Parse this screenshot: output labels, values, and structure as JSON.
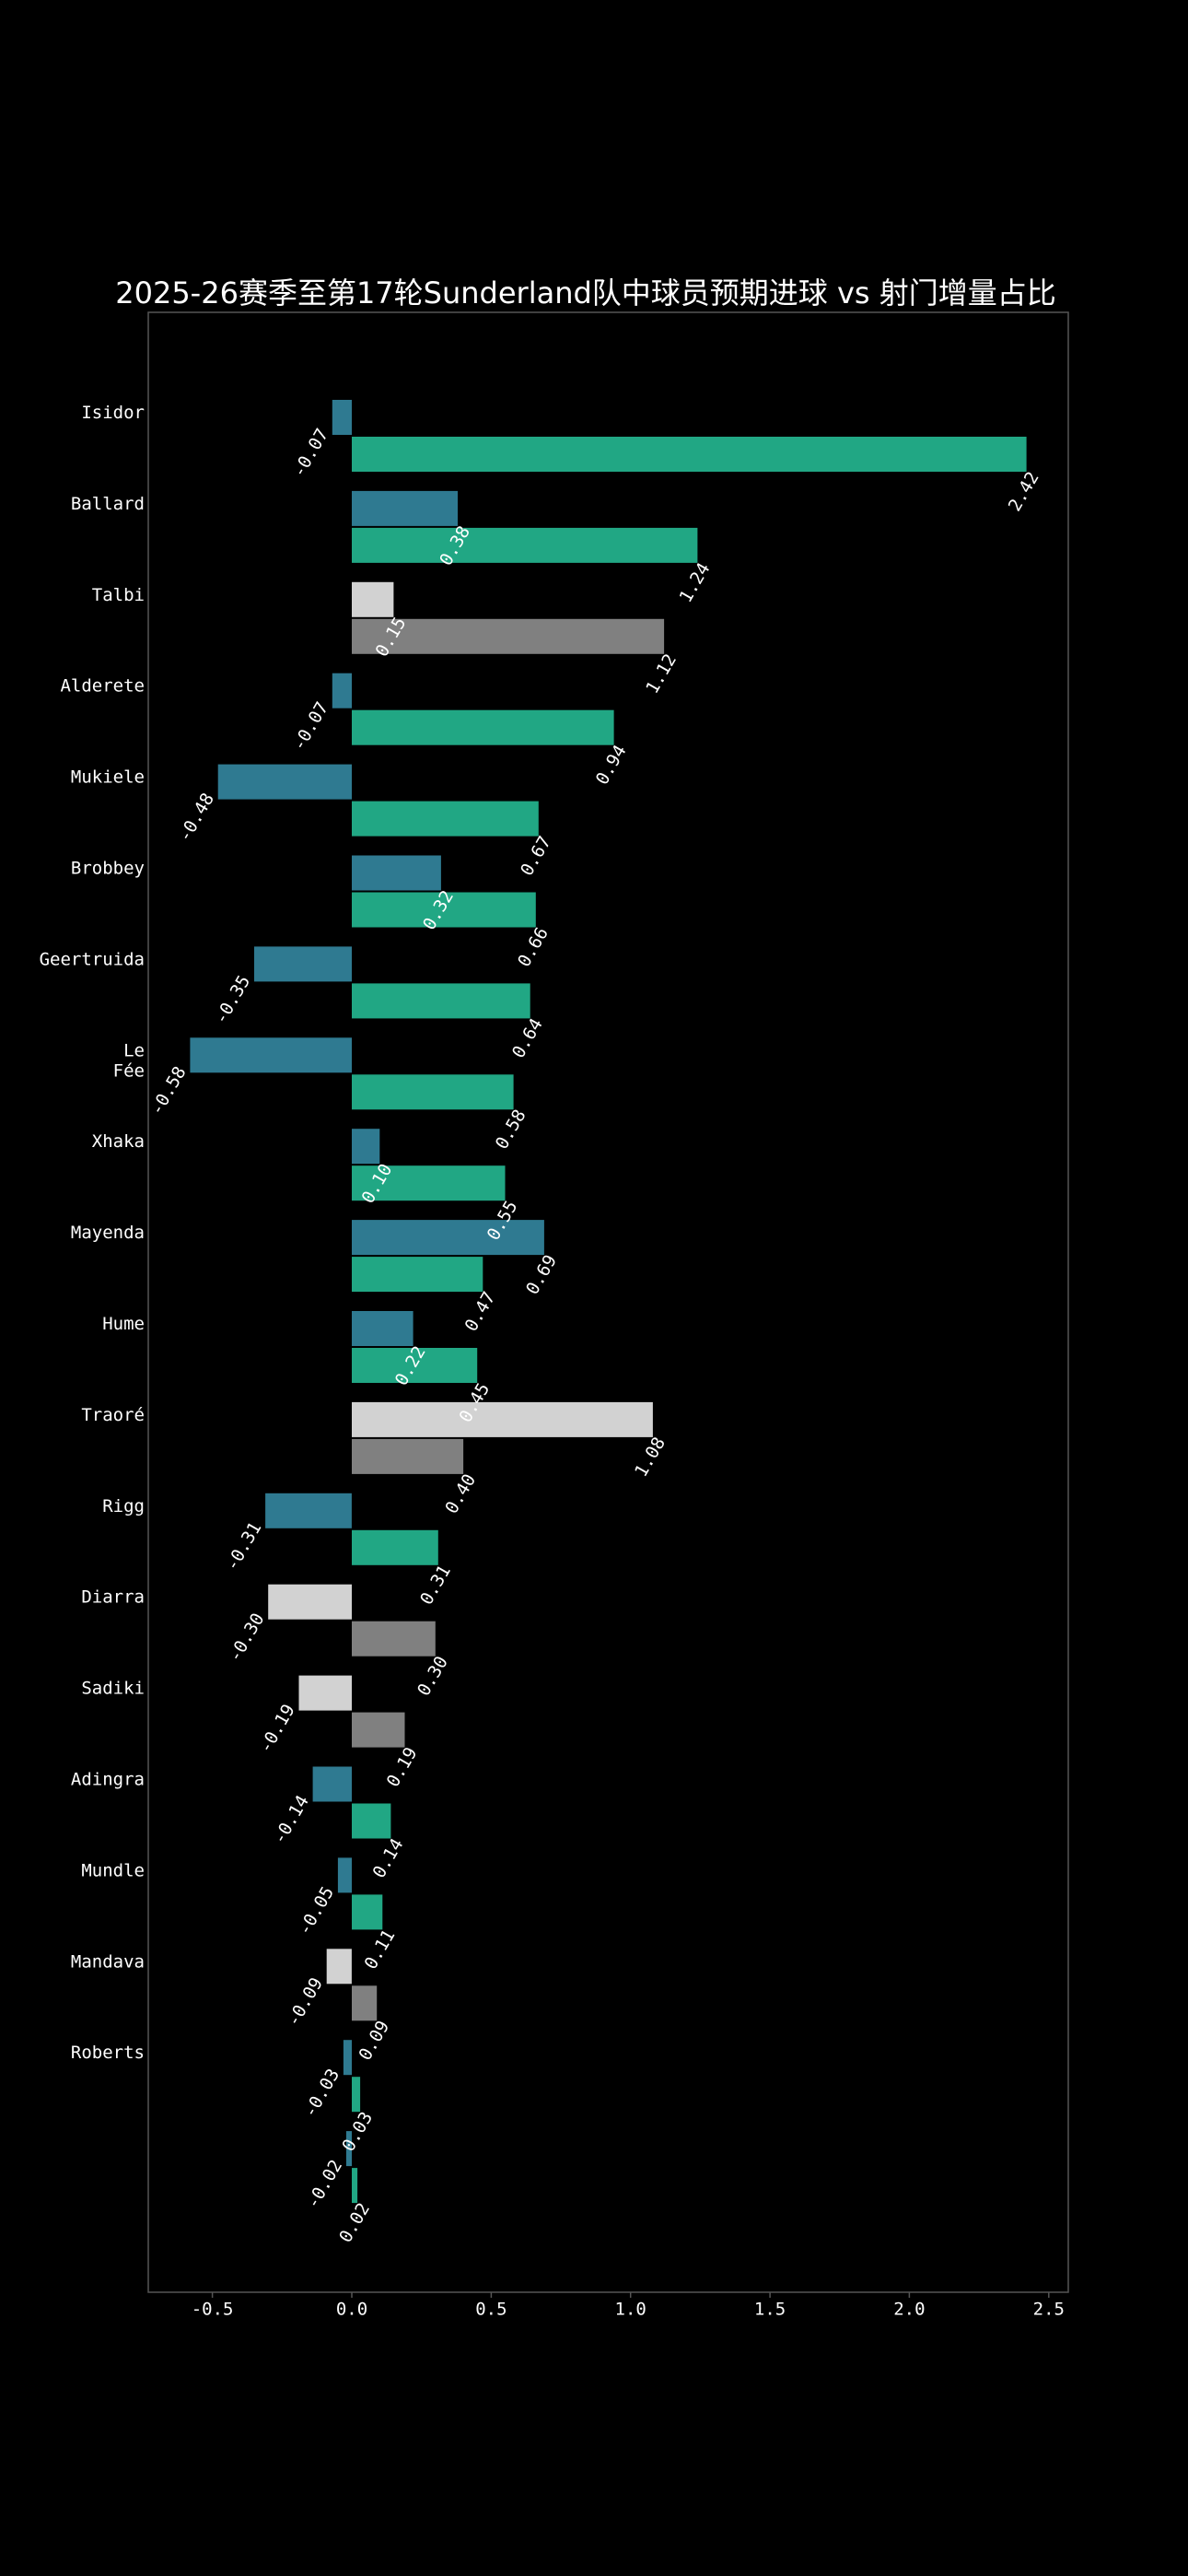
{
  "chart_data": {
    "type": "bar",
    "orientation": "horizontal",
    "title": "2025-26赛季至第17轮Sunderland队中球员预期进球 vs 射门增量占比",
    "xlabel": "",
    "ylabel": "",
    "xlim": [
      -0.73,
      2.57
    ],
    "xticks": [
      -0.5,
      0.0,
      0.5,
      1.0,
      1.5,
      2.0,
      2.5
    ],
    "xtick_labels": [
      "-0.5",
      "0.0",
      "0.5",
      "1.0",
      "1.5",
      "2.0",
      "2.5"
    ],
    "ytick_labels": [
      "Isidor",
      "Ballard",
      "Talbi",
      "Alderete",
      "Mukiele",
      "Brobbey",
      "Geertruida",
      "Le\nFée",
      "Xhaka",
      "Mayenda",
      "Hume",
      "Traoré",
      "Rigg",
      "Diarra",
      "Sadiki",
      "Adingra",
      "Mundle",
      "Mandava",
      "Roberts",
      ""
    ],
    "legend": "none",
    "grid": false,
    "colors": {
      "teal_blue": "#2f7a91",
      "green": "#21a784",
      "light_gray": "#d2d2d2",
      "gray": "#808080",
      "frame": "#555555"
    },
    "series": [
      {
        "name": "upper",
        "values": [
          -0.07,
          0.38,
          0.15,
          -0.07,
          -0.48,
          0.32,
          -0.35,
          -0.58,
          0.1,
          0.69,
          0.22,
          1.08,
          -0.31,
          -0.3,
          -0.19,
          -0.14,
          -0.05,
          -0.09,
          -0.03,
          -0.02
        ],
        "labels": [
          "-0.07",
          "0.38",
          "0.15",
          "-0.07",
          "-0.48",
          "0.32",
          "-0.35",
          "-0.58",
          "0.10",
          "0.69",
          "0.22",
          "1.08",
          "-0.31",
          "-0.30",
          "-0.19",
          "-0.14",
          "-0.05",
          "-0.09",
          "-0.03",
          "-0.02"
        ],
        "colors": [
          "teal_blue",
          "teal_blue",
          "light_gray",
          "teal_blue",
          "teal_blue",
          "teal_blue",
          "teal_blue",
          "teal_blue",
          "teal_blue",
          "teal_blue",
          "teal_blue",
          "light_gray",
          "teal_blue",
          "light_gray",
          "light_gray",
          "teal_blue",
          "teal_blue",
          "light_gray",
          "teal_blue",
          "teal_blue"
        ]
      },
      {
        "name": "lower",
        "values": [
          2.42,
          1.24,
          1.12,
          0.94,
          0.67,
          0.66,
          0.64,
          0.58,
          0.55,
          0.47,
          0.45,
          0.4,
          0.31,
          0.3,
          0.19,
          0.14,
          0.11,
          0.09,
          0.03,
          0.02
        ],
        "labels": [
          "2.42",
          "1.24",
          "1.12",
          "0.94",
          "0.67",
          "0.66",
          "0.64",
          "0.58",
          "0.55",
          "0.47",
          "0.45",
          "0.40",
          "0.31",
          "0.30",
          "0.19",
          "0.14",
          "0.11",
          "0.09",
          "0.03",
          "0.02"
        ],
        "colors": [
          "green",
          "green",
          "gray",
          "green",
          "green",
          "green",
          "green",
          "green",
          "green",
          "green",
          "green",
          "gray",
          "green",
          "gray",
          "gray",
          "green",
          "green",
          "gray",
          "green",
          "green"
        ]
      }
    ]
  }
}
